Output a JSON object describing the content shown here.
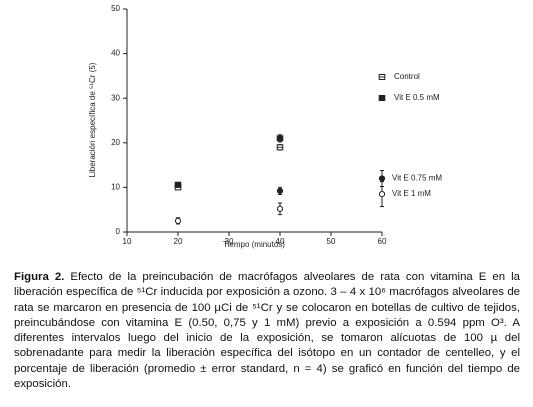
{
  "chart_data": {
    "type": "scatter",
    "x_label": "Tiempo (minutos)",
    "y_label": "Liberación específica de ⁵¹Cr (5)",
    "x": [
      20,
      40,
      60
    ],
    "series": [
      {
        "name": "Control",
        "color": "#222222",
        "marker": "open-square",
        "values": [
          10,
          19,
          null
        ],
        "errors": [
          0.5,
          0.6,
          null
        ]
      },
      {
        "name": "Vit E 0.5 mM",
        "color": "#222222",
        "marker": "filled-square",
        "values": [
          10.6,
          21,
          null
        ],
        "errors": [
          0.5,
          0.8,
          null
        ]
      },
      {
        "name": "Vit E 0.75 mM",
        "color": "#222222",
        "marker": "filled-circle",
        "values": [
          null,
          9.2,
          12
        ],
        "errors": [
          null,
          0.8,
          1.8
        ]
      },
      {
        "name": "Vit E 1 mM",
        "color": "#222222",
        "marker": "open-circle",
        "values": [
          2.5,
          5.2,
          8.5
        ],
        "errors": [
          0.7,
          1.3,
          2.8
        ]
      }
    ],
    "xlim": [
      10,
      60
    ],
    "xticks": [
      10,
      20,
      30,
      40,
      50,
      60
    ],
    "ylim": [
      0,
      50
    ],
    "yticks": [
      0,
      10,
      20,
      30,
      40,
      50
    ]
  },
  "caption": {
    "label": "Figura 2.",
    "text": "Efecto de la preincubación de macrófagos alveolares de rata con vitamina E en la liberación específica de ⁵¹Cr inducida por exposición a ozono. 3 – 4 x 10⁶ macrófagos alveolares de rata se marcaron en presencia de 100 µCi de ⁵¹Cr y se colocaron en botellas de cultivo de tejidos, preincubándose con vitamina E (0.50, 0,75 y 1 mM) previo a exposición a 0.594 ppm O³. A diferentes intervalos luego del inicio de la exposición, se tomaron alícuotas de 100 µ del sobrenadante para medir la liberación específica del isótopo en un contador de centelleo, y el porcentaje de liberación (promedio ± error standard, n = 4) se graficó en función del tiempo de exposición."
  }
}
